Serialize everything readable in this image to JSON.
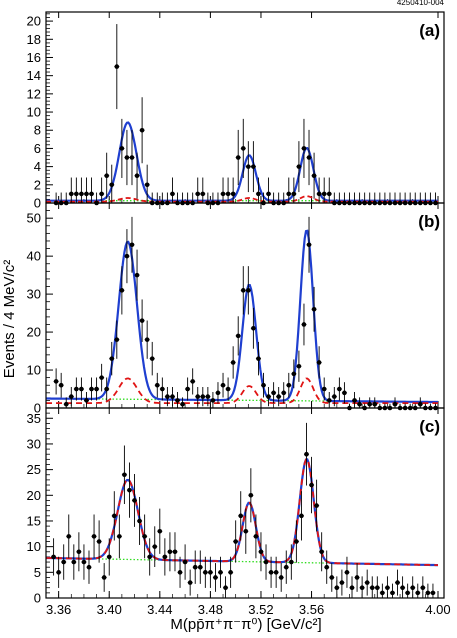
{
  "figure_id": "4250410-004",
  "chart_data": [
    {
      "type": "scatter",
      "panel_label": "(a)",
      "xlim": [
        3.35,
        4.0
      ],
      "ylim": [
        0,
        21
      ],
      "yticks_major": [
        0,
        2,
        4,
        6,
        8,
        10,
        12,
        14,
        16,
        18,
        20
      ],
      "points": [
        [
          3.358,
          0
        ],
        [
          3.362,
          0
        ],
        [
          3.366,
          0
        ],
        [
          3.37,
          1
        ],
        [
          3.374,
          1
        ],
        [
          3.378,
          1
        ],
        [
          3.382,
          1
        ],
        [
          3.386,
          1
        ],
        [
          3.39,
          0
        ],
        [
          3.394,
          1
        ],
        [
          3.398,
          3
        ],
        [
          3.402,
          2
        ],
        [
          3.406,
          15
        ],
        [
          3.41,
          6
        ],
        [
          3.414,
          5
        ],
        [
          3.418,
          5
        ],
        [
          3.422,
          3
        ],
        [
          3.426,
          8
        ],
        [
          3.43,
          2
        ],
        [
          3.434,
          0
        ],
        [
          3.438,
          0
        ],
        [
          3.442,
          0
        ],
        [
          3.446,
          0
        ],
        [
          3.45,
          1
        ],
        [
          3.454,
          0
        ],
        [
          3.458,
          0
        ],
        [
          3.462,
          0
        ],
        [
          3.466,
          0
        ],
        [
          3.47,
          1
        ],
        [
          3.474,
          1
        ],
        [
          3.478,
          0
        ],
        [
          3.482,
          0
        ],
        [
          3.486,
          0
        ],
        [
          3.49,
          1
        ],
        [
          3.494,
          1
        ],
        [
          3.498,
          1
        ],
        [
          3.502,
          5
        ],
        [
          3.506,
          6
        ],
        [
          3.51,
          4
        ],
        [
          3.514,
          4
        ],
        [
          3.518,
          1
        ],
        [
          3.522,
          0
        ],
        [
          3.526,
          1
        ],
        [
          3.53,
          0
        ],
        [
          3.534,
          0
        ],
        [
          3.538,
          0
        ],
        [
          3.542,
          1
        ],
        [
          3.546,
          1
        ],
        [
          3.55,
          4
        ],
        [
          3.554,
          6
        ],
        [
          3.558,
          5
        ],
        [
          3.562,
          3
        ],
        [
          3.566,
          1
        ],
        [
          3.57,
          1
        ],
        [
          3.574,
          1
        ],
        [
          3.578,
          0
        ],
        [
          3.582,
          0
        ],
        [
          3.586,
          0
        ],
        [
          3.59,
          0
        ],
        [
          3.594,
          0
        ],
        [
          3.598,
          0
        ],
        [
          3.602,
          0
        ],
        [
          3.606,
          0
        ],
        [
          3.61,
          0
        ],
        [
          3.614,
          0
        ],
        [
          3.618,
          0
        ],
        [
          3.622,
          0
        ],
        [
          3.626,
          0
        ],
        [
          3.63,
          0
        ],
        [
          3.634,
          0
        ],
        [
          3.638,
          0
        ],
        [
          3.642,
          0
        ],
        [
          3.646,
          0
        ],
        [
          3.65,
          0
        ],
        [
          3.654,
          0
        ],
        [
          3.658,
          0
        ]
      ],
      "peaks": [
        {
          "mu": 3.4147,
          "sigma": 0.0068,
          "total": 8.6,
          "dashed": 0.4
        },
        {
          "mu": 3.5107,
          "sigma": 0.0052,
          "total": 5.0,
          "dashed": 0.4
        },
        {
          "mu": 3.5562,
          "sigma": 0.0052,
          "total": 5.8,
          "dashed": 0.6
        }
      ],
      "background": [
        0.25,
        0.0
      ],
      "dashed_line": {
        "dash": [
          5,
          3
        ],
        "base": 0.15
      }
    },
    {
      "type": "scatter",
      "panel_label": "(b)",
      "xlim": [
        3.35,
        4.0
      ],
      "ylim": [
        0,
        54
      ],
      "yticks_major": [
        0,
        10,
        20,
        30,
        40,
        50
      ],
      "points": [
        [
          3.358,
          7
        ],
        [
          3.362,
          6
        ],
        [
          3.366,
          1
        ],
        [
          3.37,
          3
        ],
        [
          3.374,
          5
        ],
        [
          3.378,
          5
        ],
        [
          3.382,
          2
        ],
        [
          3.386,
          5
        ],
        [
          3.39,
          5
        ],
        [
          3.394,
          8
        ],
        [
          3.398,
          5
        ],
        [
          3.402,
          13
        ],
        [
          3.406,
          18
        ],
        [
          3.41,
          31
        ],
        [
          3.414,
          40
        ],
        [
          3.418,
          43
        ],
        [
          3.422,
          35
        ],
        [
          3.426,
          23
        ],
        [
          3.43,
          18
        ],
        [
          3.434,
          13
        ],
        [
          3.438,
          6
        ],
        [
          3.442,
          5
        ],
        [
          3.446,
          3
        ],
        [
          3.45,
          3
        ],
        [
          3.454,
          2
        ],
        [
          3.458,
          1
        ],
        [
          3.462,
          5
        ],
        [
          3.466,
          7
        ],
        [
          3.47,
          3
        ],
        [
          3.474,
          3
        ],
        [
          3.478,
          3
        ],
        [
          3.482,
          2
        ],
        [
          3.486,
          4
        ],
        [
          3.49,
          6
        ],
        [
          3.494,
          5
        ],
        [
          3.498,
          12
        ],
        [
          3.502,
          19
        ],
        [
          3.506,
          31
        ],
        [
          3.51,
          31
        ],
        [
          3.514,
          21
        ],
        [
          3.518,
          13
        ],
        [
          3.522,
          6
        ],
        [
          3.526,
          3
        ],
        [
          3.53,
          4
        ],
        [
          3.534,
          3
        ],
        [
          3.538,
          4
        ],
        [
          3.542,
          6
        ],
        [
          3.546,
          9
        ],
        [
          3.55,
          11
        ],
        [
          3.554,
          22
        ],
        [
          3.558,
          43
        ],
        [
          3.562,
          26
        ],
        [
          3.566,
          12
        ],
        [
          3.57,
          5
        ],
        [
          3.574,
          2
        ],
        [
          3.578,
          3
        ],
        [
          3.582,
          5
        ],
        [
          3.586,
          4
        ],
        [
          3.59,
          0
        ],
        [
          3.594,
          2
        ],
        [
          3.598,
          1
        ],
        [
          3.602,
          0
        ],
        [
          3.606,
          1
        ],
        [
          3.61,
          1
        ],
        [
          3.614,
          0
        ],
        [
          3.618,
          0
        ],
        [
          3.622,
          0
        ],
        [
          3.626,
          1
        ],
        [
          3.63,
          0
        ],
        [
          3.634,
          0
        ],
        [
          3.638,
          0
        ],
        [
          3.642,
          0
        ],
        [
          3.646,
          1
        ],
        [
          3.65,
          0
        ],
        [
          3.654,
          0
        ],
        [
          3.658,
          0
        ]
      ],
      "peaks": [
        {
          "mu": 3.4147,
          "sigma": 0.0072,
          "total": 41.5,
          "dashed": 6.5
        },
        {
          "mu": 3.5107,
          "sigma": 0.0054,
          "total": 30.5,
          "dashed": 4.5
        },
        {
          "mu": 3.5562,
          "sigma": 0.005,
          "total": 45.0,
          "dashed": 6.5
        }
      ],
      "background": [
        2.5,
        1.0
      ],
      "dashed_line": {
        "dash": [
          6,
          4
        ],
        "base": 1.3
      }
    },
    {
      "type": "scatter",
      "panel_label": "(c)",
      "xlim": [
        3.35,
        4.0
      ],
      "ylim": [
        0,
        37
      ],
      "yticks_major": [
        0,
        5,
        10,
        15,
        20,
        25,
        30,
        35
      ],
      "points": [
        [
          3.356,
          8
        ],
        [
          3.36,
          5
        ],
        [
          3.364,
          7
        ],
        [
          3.368,
          12
        ],
        [
          3.372,
          7
        ],
        [
          3.376,
          9
        ],
        [
          3.38,
          7
        ],
        [
          3.384,
          6
        ],
        [
          3.388,
          12
        ],
        [
          3.392,
          11
        ],
        [
          3.396,
          4
        ],
        [
          3.4,
          8
        ],
        [
          3.404,
          16
        ],
        [
          3.408,
          12
        ],
        [
          3.412,
          24
        ],
        [
          3.416,
          21
        ],
        [
          3.42,
          19
        ],
        [
          3.424,
          15
        ],
        [
          3.428,
          12
        ],
        [
          3.432,
          8
        ],
        [
          3.436,
          10
        ],
        [
          3.44,
          13
        ],
        [
          3.444,
          8
        ],
        [
          3.448,
          9
        ],
        [
          3.452,
          9
        ],
        [
          3.456,
          5
        ],
        [
          3.46,
          7
        ],
        [
          3.464,
          3
        ],
        [
          3.468,
          6
        ],
        [
          3.472,
          6
        ],
        [
          3.476,
          5
        ],
        [
          3.48,
          5
        ],
        [
          3.484,
          4
        ],
        [
          3.488,
          5
        ],
        [
          3.492,
          2
        ],
        [
          3.496,
          5
        ],
        [
          3.5,
          11
        ],
        [
          3.504,
          16
        ],
        [
          3.508,
          13
        ],
        [
          3.512,
          20
        ],
        [
          3.516,
          12
        ],
        [
          3.52,
          9
        ],
        [
          3.524,
          7
        ],
        [
          3.528,
          5
        ],
        [
          3.532,
          5
        ],
        [
          3.536,
          4
        ],
        [
          3.54,
          6
        ],
        [
          3.544,
          7
        ],
        [
          3.548,
          11
        ],
        [
          3.552,
          16
        ],
        [
          3.556,
          28
        ],
        [
          3.56,
          22
        ],
        [
          3.564,
          18
        ],
        [
          3.568,
          9
        ],
        [
          3.572,
          6
        ],
        [
          3.576,
          4
        ],
        [
          3.58,
          2
        ],
        [
          3.584,
          3
        ],
        [
          3.588,
          5
        ],
        [
          3.592,
          2
        ],
        [
          3.596,
          4
        ],
        [
          3.6,
          2
        ],
        [
          3.604,
          3
        ],
        [
          3.608,
          2
        ],
        [
          3.612,
          2
        ],
        [
          3.616,
          1
        ],
        [
          3.62,
          2
        ],
        [
          3.624,
          1
        ],
        [
          3.628,
          3
        ],
        [
          3.632,
          2
        ],
        [
          3.636,
          1
        ],
        [
          3.64,
          2
        ],
        [
          3.644,
          1
        ],
        [
          3.648,
          2
        ],
        [
          3.652,
          1
        ],
        [
          3.656,
          1
        ]
      ],
      "peaks": [
        {
          "mu": 3.4147,
          "sigma": 0.008,
          "total": 15.5,
          "dashed": 15.5
        },
        {
          "mu": 3.5107,
          "sigma": 0.0052,
          "total": 11.5,
          "dashed": 11.5
        },
        {
          "mu": 3.5562,
          "sigma": 0.0055,
          "total": 20.2,
          "dashed": 20.2
        }
      ],
      "background": [
        7.8,
        1.5
      ],
      "dashed_line": {
        "dash": [
          6,
          4
        ],
        "base": 0
      }
    }
  ],
  "x_axis": {
    "ticks": [
      3.36,
      3.4,
      3.44,
      3.48,
      3.52,
      3.56,
      4.0
    ],
    "tick_labels": [
      "3.36",
      "3.40",
      "3.44",
      "3.48",
      "3.52",
      "3.56",
      "4.00"
    ],
    "label": "M(pp̄π⁺π⁻π⁰) [GeV/c²]"
  },
  "y_axis": {
    "label": "Events / 4 MeV/c²"
  },
  "colors": {
    "total_fit": "#1f3fd0",
    "signal_dashed": "#e01414",
    "background_dotted": "#33dd22",
    "points": "#000000"
  }
}
